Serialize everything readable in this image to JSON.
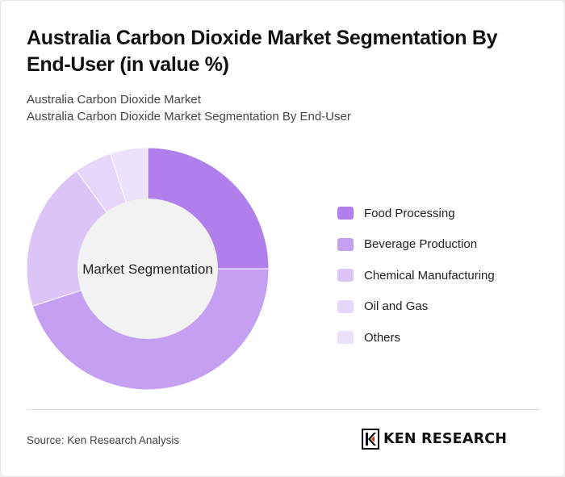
{
  "header": {
    "title": "Australia Carbon Dioxide Market Segmentation By End-User (in value %)",
    "subtitle_1": "Australia Carbon Dioxide Market",
    "subtitle_2": "Australia Carbon Dioxide Market Segmentation By End-User"
  },
  "footer": {
    "source": "Source: Ken Research Analysis",
    "brand": "KEN RESEARCH",
    "brand_icon": "ken-research-logo-icon"
  },
  "chart_data": {
    "type": "donut",
    "center_label": "Market Segmentation",
    "categories": [
      "Food Processing",
      "Beverage Production",
      "Chemical Manufacturing",
      "Oil and Gas",
      "Others"
    ],
    "values": [
      25,
      45,
      20,
      5,
      5
    ],
    "colors": [
      "#b07fec",
      "#c59ff1",
      "#dcc4f7",
      "#e6d6f9",
      "#ece1fb"
    ],
    "legend_position": "right"
  }
}
